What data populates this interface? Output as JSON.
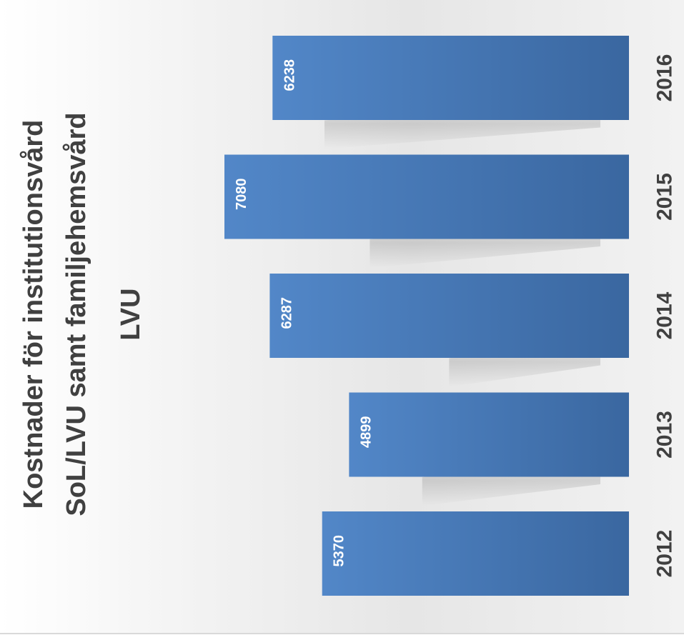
{
  "chart_data": {
    "type": "bar",
    "title": "Kostnader för institutionsvård SoL/LVU samt familjehemsvård LVU",
    "title_lines": [
      "Kostnader för institutionsvård",
      "SoL/LVU samt familjehemsvård",
      "LVU"
    ],
    "orientation": "rotated-90-clockwise",
    "categories": [
      "2012",
      "2013",
      "2014",
      "2015",
      "2016"
    ],
    "values": [
      5370,
      4899,
      6287,
      7080,
      6238
    ],
    "value_labels": [
      "5370",
      "4899",
      "6287",
      "7080",
      "6238"
    ],
    "xlabel": "",
    "ylabel": "",
    "ylim": [
      0,
      10000
    ],
    "grid": false,
    "legend": "none",
    "data_labels": true,
    "bar_color": "#4a7ab8",
    "bar_color_light": "#5287c8",
    "bar_color_dark": "#3a67a0",
    "text_color": "#404040",
    "label_color": "#ffffff"
  }
}
